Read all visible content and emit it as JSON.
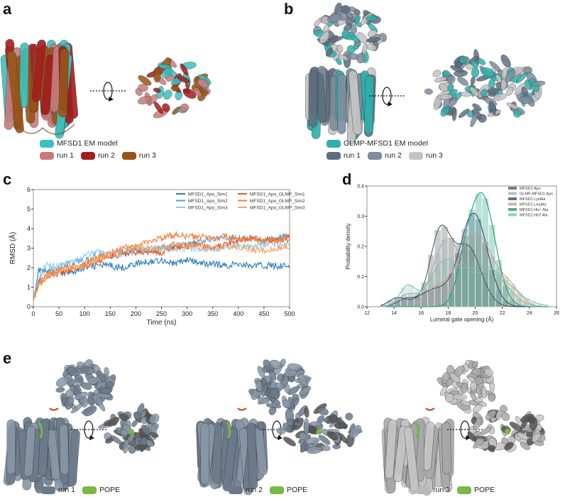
{
  "panels": {
    "a": "a",
    "b": "b",
    "c": "c",
    "d": "d",
    "e": "e"
  },
  "legend_a": [
    {
      "label": "MFSD1 EM model",
      "color": "#3cc0bd"
    },
    {
      "label": "run 1",
      "color": "#c77b7b"
    },
    {
      "label": "run 2",
      "color": "#a31d1d"
    },
    {
      "label": "run 3",
      "color": "#9a5416"
    }
  ],
  "legend_b": [
    {
      "label": "GLMP-MFSD1 EM model",
      "color": "#2fb0ac"
    },
    {
      "label": "run 1",
      "color": "#5f6e7e"
    },
    {
      "label": "run 2",
      "color": "#7d8d9e"
    },
    {
      "label": "run 3",
      "color": "#c3c3c3"
    }
  ],
  "legend_e": [
    [
      {
        "label": "run 1",
        "color": "#6b7a8b"
      },
      {
        "label": "POPE",
        "color": "#78b844"
      }
    ],
    [
      {
        "label": "run 2",
        "color": "#6b7a8b"
      },
      {
        "label": "POPE",
        "color": "#78b844"
      }
    ],
    [
      {
        "label": "run 3",
        "color": "#b9b9b9"
      },
      {
        "label": "POPE",
        "color": "#78b844"
      }
    ]
  ],
  "chart_data": [
    {
      "type": "line",
      "xlabel": "Time (ns)",
      "ylabel": "RMSD (Å)",
      "xlim": [
        0,
        500
      ],
      "ylim": [
        0,
        6
      ],
      "xticks": [
        0,
        50,
        100,
        150,
        200,
        250,
        300,
        350,
        400,
        450,
        500
      ],
      "yticks": [
        0,
        1,
        2,
        3,
        4,
        5,
        6
      ],
      "legend": "top-right",
      "x": [
        0,
        10,
        25,
        50,
        75,
        100,
        125,
        150,
        175,
        200,
        225,
        250,
        275,
        300,
        325,
        350,
        375,
        400,
        425,
        450,
        475,
        500
      ],
      "series": [
        {
          "name": "MFSD1_Apo_Sim1",
          "color": "#2a7cbc",
          "values": [
            0.3,
            1.9,
            1.8,
            1.7,
            1.8,
            2.0,
            2.1,
            2.1,
            2.0,
            2.2,
            2.3,
            2.4,
            2.2,
            2.4,
            2.2,
            2.2,
            2.1,
            2.2,
            2.1,
            2.1,
            2.1,
            2.1
          ]
        },
        {
          "name": "MFSD1_Apo_Sim2",
          "color": "#4ba0d4",
          "values": [
            0.3,
            1.4,
            1.8,
            2.0,
            2.2,
            2.4,
            2.6,
            2.7,
            2.8,
            2.9,
            2.9,
            3.0,
            3.1,
            3.2,
            3.3,
            3.5,
            3.6,
            3.5,
            3.5,
            3.4,
            3.5,
            3.6
          ]
        },
        {
          "name": "MFSD1_Apo_Sim3",
          "color": "#8fc6e6",
          "values": [
            0.3,
            1.5,
            2.2,
            2.1,
            2.3,
            2.6,
            2.8,
            2.6,
            2.7,
            2.8,
            2.9,
            2.9,
            3.0,
            3.0,
            3.0,
            2.9,
            3.1,
            3.2,
            3.0,
            3.2,
            3.2,
            3.2
          ]
        },
        {
          "name": "MFSD1_Apo_GLMP_Sim1",
          "color": "#e8561e",
          "values": [
            0.3,
            1.2,
            1.5,
            1.8,
            1.9,
            2.1,
            2.3,
            2.6,
            2.7,
            2.8,
            2.8,
            2.8,
            3.1,
            3.1,
            3.2,
            3.0,
            3.2,
            3.4,
            3.5,
            3.4,
            3.4,
            3.6
          ]
        },
        {
          "name": "MFSD1_Apo_GLMP_Sim2",
          "color": "#f2823e",
          "values": [
            0.3,
            1.2,
            1.6,
            1.9,
            2.0,
            2.2,
            2.5,
            2.8,
            3.0,
            3.1,
            3.3,
            3.5,
            3.7,
            3.6,
            3.6,
            3.5,
            3.6,
            3.5,
            3.5,
            3.4,
            3.4,
            3.5
          ]
        },
        {
          "name": "MFSD1_Apo_GLMP_Sim3",
          "color": "#f6a466",
          "values": [
            0.3,
            1.1,
            1.5,
            1.8,
            2.0,
            2.1,
            2.4,
            2.7,
            2.9,
            3.0,
            3.0,
            3.0,
            3.2,
            3.1,
            3.1,
            3.0,
            3.1,
            3.1,
            2.9,
            2.9,
            3.0,
            3.1
          ]
        }
      ]
    },
    {
      "type": "histogram",
      "xlabel": "Luminal gate opening (Å)",
      "ylabel": "Probability density",
      "xlim": [
        12,
        26
      ],
      "ylim": [
        0,
        0.4
      ],
      "xticks": [
        12,
        14,
        16,
        18,
        20,
        22,
        24,
        26
      ],
      "yticks": [
        0.0,
        0.1,
        0.2,
        0.3,
        0.4
      ],
      "legend": "top-right",
      "bin_width": 0.5,
      "series": [
        {
          "name": "MFSD1 Apo",
          "color": "#555a5e",
          "kde_components": [
            [
              17.4,
              0.75,
              0.45
            ],
            [
              19.4,
              1.0,
              0.5
            ],
            [
              15,
              0.7,
              0.05
            ]
          ]
        },
        {
          "name": "GLMP-MFSD1 Apo",
          "color": "#a9abad",
          "kde_components": [
            [
              17.9,
              1.0,
              0.55
            ],
            [
              21,
              1.3,
              0.38
            ],
            [
              15,
              0.7,
              0.07
            ]
          ]
        },
        {
          "name": "MFSD1 LysAla",
          "color": "#3c4a7c",
          "kde_components": [
            [
              19.9,
              1.0,
              0.77
            ],
            [
              17,
              1.2,
              0.17
            ],
            [
              14.2,
              0.6,
              0.04
            ]
          ]
        },
        {
          "name": "MFSD1 LeuAla",
          "color": "#d29b8b",
          "kde_components": [
            [
              20,
              1.3,
              0.8
            ],
            [
              17,
              0.8,
              0.1
            ],
            [
              22.6,
              0.8,
              0.1
            ]
          ]
        },
        {
          "name": "MFSD1 His⁺ Ala",
          "color": "#1c9e7b",
          "kde_components": [
            [
              20.5,
              0.95,
              0.88
            ],
            [
              19.2,
              0.6,
              0.12
            ]
          ]
        },
        {
          "name": "MFSD1 His⁸ Ala",
          "color": "#80c0a9",
          "kde_components": [
            [
              20.6,
              1.8,
              0.6
            ],
            [
              17.6,
              1.0,
              0.3
            ],
            [
              15,
              0.6,
              0.1
            ]
          ]
        }
      ]
    }
  ]
}
